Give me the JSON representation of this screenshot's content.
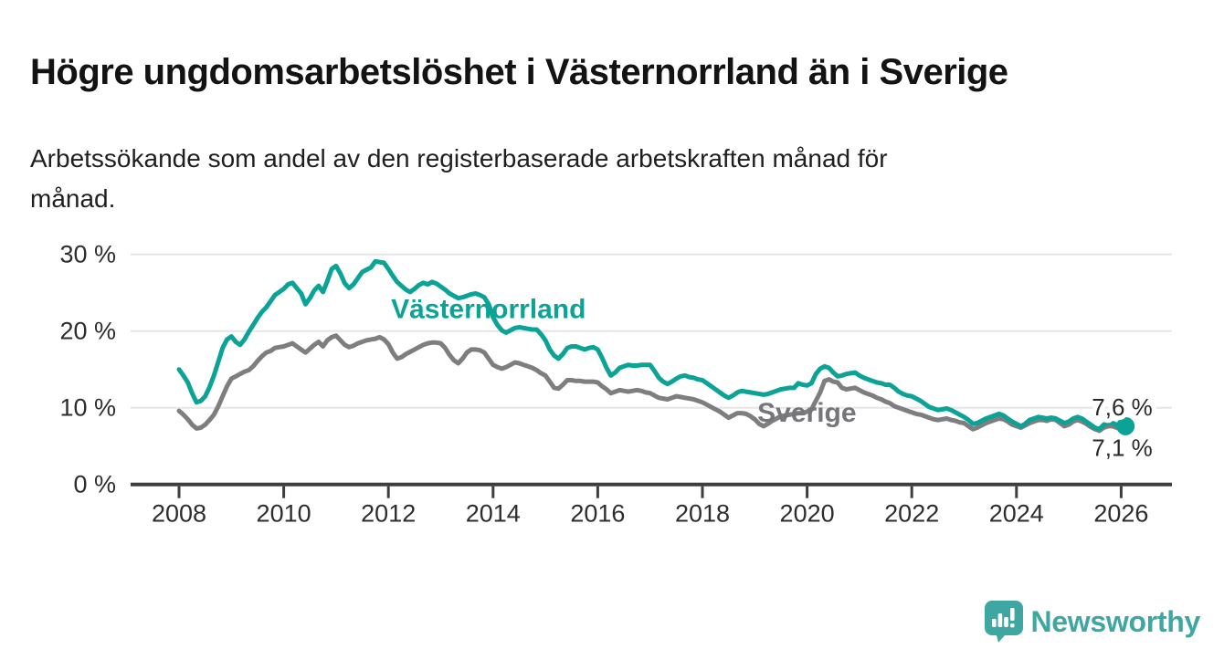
{
  "header": {
    "title": "Högre ungdomsarbetslöshet i Västernorrland än i Sverige",
    "subtitle_line1": "Arbetssökande som andel av den registerbaserade arbetskraften månad för",
    "subtitle_line2": "månad."
  },
  "footer": {
    "brand": "Newsworthy",
    "logo_icon": "bar-chart-speech-bubble-icon",
    "brand_color": "#3fa7a1"
  },
  "chart_data": {
    "type": "line",
    "x_unit": "month",
    "x_start_year": 2008,
    "x_end": "2026-02",
    "ylim": [
      0,
      33
    ],
    "grid": "horizontal",
    "y_ticks": [
      {
        "value": 0,
        "label": "0 %"
      },
      {
        "value": 10,
        "label": "10 %"
      },
      {
        "value": 20,
        "label": "20 %"
      },
      {
        "value": 30,
        "label": "30 %"
      }
    ],
    "x_ticks": [
      {
        "value": 2008,
        "label": "2008"
      },
      {
        "value": 2010,
        "label": "2010"
      },
      {
        "value": 2012,
        "label": "2012"
      },
      {
        "value": 2014,
        "label": "2014"
      },
      {
        "value": 2016,
        "label": "2016"
      },
      {
        "value": 2018,
        "label": "2018"
      },
      {
        "value": 2020,
        "label": "2020"
      },
      {
        "value": 2022,
        "label": "2022"
      },
      {
        "value": 2024,
        "label": "2024"
      },
      {
        "value": 2026,
        "label": "2026"
      }
    ],
    "colors": {
      "vasternorrland": "#0aa396",
      "sverige": "#7e7e81",
      "grid": "#e6e6e6",
      "axis": "#3e3e3e",
      "tick_label": "#2d2d2d",
      "end_label": "#2a2a2a"
    },
    "series": [
      {
        "name": "Västernorrland",
        "color": "#0aa396",
        "end_dot": true,
        "end_value_label": "7,6 %",
        "values": [
          15.0,
          14.2,
          13.3,
          11.9,
          10.7,
          10.9,
          11.5,
          12.7,
          14.2,
          16.0,
          17.8,
          18.9,
          19.3,
          18.6,
          18.2,
          18.9,
          19.9,
          20.8,
          21.7,
          22.5,
          23.1,
          23.9,
          24.7,
          25.1,
          25.5,
          26.1,
          26.3,
          25.6,
          24.9,
          23.5,
          24.3,
          25.3,
          25.9,
          25.1,
          26.5,
          28.1,
          28.5,
          27.5,
          26.2,
          25.6,
          26.1,
          26.9,
          27.7,
          28.0,
          28.3,
          29.1,
          29.0,
          28.9,
          28.1,
          27.2,
          26.4,
          25.9,
          25.4,
          25.1,
          25.5,
          26.0,
          26.3,
          26.1,
          26.4,
          26.2,
          25.8,
          25.4,
          24.9,
          24.6,
          24.3,
          24.4,
          24.6,
          24.8,
          24.9,
          24.7,
          24.4,
          23.5,
          21.8,
          20.8,
          20.1,
          19.8,
          20.1,
          20.4,
          20.5,
          20.4,
          20.3,
          20.2,
          20.2,
          19.6,
          18.8,
          17.6,
          16.8,
          16.4,
          17.0,
          17.8,
          18.0,
          18.0,
          17.8,
          17.6,
          17.8,
          17.9,
          17.6,
          16.5,
          15.2,
          14.2,
          14.6,
          15.2,
          15.4,
          15.6,
          15.5,
          15.5,
          15.6,
          15.6,
          15.6,
          14.8,
          13.9,
          13.4,
          13.1,
          13.4,
          13.8,
          14.1,
          14.2,
          14.0,
          13.9,
          13.7,
          13.6,
          13.2,
          12.8,
          12.4,
          12.0,
          11.6,
          11.3,
          11.6,
          12.0,
          12.2,
          12.1,
          12.0,
          11.9,
          11.8,
          11.7,
          11.8,
          12.0,
          12.2,
          12.4,
          12.5,
          12.6,
          12.6,
          13.2,
          13.0,
          12.9,
          13.2,
          14.4,
          15.1,
          15.4,
          15.2,
          14.6,
          14.1,
          14.2,
          14.4,
          14.5,
          14.6,
          14.2,
          13.9,
          13.7,
          13.5,
          13.3,
          13.2,
          13.0,
          13.0,
          12.6,
          12.1,
          11.8,
          11.6,
          11.5,
          11.2,
          10.9,
          10.5,
          10.1,
          9.9,
          9.7,
          9.8,
          9.9,
          9.7,
          9.4,
          9.1,
          8.8,
          8.4,
          7.9,
          8.0,
          8.3,
          8.6,
          8.8,
          9.0,
          9.2,
          9.0,
          8.6,
          8.2,
          7.9,
          7.6,
          7.9,
          8.4,
          8.6,
          8.8,
          8.7,
          8.6,
          8.7,
          8.6,
          8.3,
          8.0,
          8.2,
          8.6,
          8.8,
          8.6,
          8.2,
          7.8,
          7.4,
          7.2,
          7.8,
          8.0,
          8.0,
          7.8,
          7.7,
          7.6
        ]
      },
      {
        "name": "Sverige",
        "color": "#7e7e81",
        "end_dot": false,
        "end_value_label": "7,1 %",
        "values": [
          9.6,
          9.1,
          8.5,
          7.8,
          7.3,
          7.4,
          7.8,
          8.4,
          9.1,
          10.2,
          11.5,
          12.8,
          13.8,
          14.1,
          14.4,
          14.7,
          14.9,
          15.4,
          16.1,
          16.7,
          17.2,
          17.4,
          17.8,
          17.9,
          18.0,
          18.2,
          18.4,
          18.0,
          17.6,
          17.2,
          17.7,
          18.2,
          18.6,
          18.0,
          18.8,
          19.2,
          19.4,
          18.8,
          18.2,
          17.9,
          18.1,
          18.4,
          18.6,
          18.8,
          18.9,
          19.0,
          19.2,
          18.9,
          18.3,
          17.2,
          16.4,
          16.6,
          17.0,
          17.3,
          17.6,
          17.9,
          18.2,
          18.4,
          18.5,
          18.5,
          18.4,
          17.8,
          16.9,
          16.2,
          15.8,
          16.4,
          17.2,
          17.6,
          17.6,
          17.5,
          17.2,
          16.4,
          15.6,
          15.3,
          15.1,
          15.3,
          15.6,
          15.9,
          15.8,
          15.6,
          15.4,
          15.2,
          14.9,
          14.5,
          14.2,
          13.4,
          12.6,
          12.5,
          13.0,
          13.6,
          13.6,
          13.5,
          13.5,
          13.4,
          13.4,
          13.4,
          13.3,
          12.8,
          12.4,
          11.9,
          12.1,
          12.3,
          12.2,
          12.1,
          12.2,
          12.3,
          12.2,
          12.0,
          11.9,
          11.6,
          11.3,
          11.2,
          11.1,
          11.3,
          11.5,
          11.4,
          11.3,
          11.2,
          11.1,
          10.9,
          10.7,
          10.4,
          10.1,
          9.8,
          9.5,
          9.1,
          8.7,
          9.0,
          9.3,
          9.3,
          9.2,
          8.9,
          8.5,
          7.9,
          7.6,
          7.9,
          8.3,
          8.6,
          8.9,
          9.0,
          9.1,
          9.2,
          9.3,
          9.3,
          9.5,
          9.8,
          10.9,
          12.0,
          13.5,
          13.7,
          13.4,
          13.3,
          12.6,
          12.4,
          12.5,
          12.6,
          12.3,
          12.0,
          11.8,
          11.6,
          11.3,
          11.1,
          10.8,
          10.6,
          10.2,
          10.0,
          9.8,
          9.6,
          9.4,
          9.2,
          9.1,
          8.9,
          8.7,
          8.5,
          8.4,
          8.5,
          8.6,
          8.4,
          8.3,
          8.1,
          8.0,
          7.6,
          7.2,
          7.4,
          7.7,
          8.0,
          8.2,
          8.4,
          8.6,
          8.5,
          8.2,
          7.8,
          7.6,
          7.4,
          7.7,
          8.0,
          8.2,
          8.4,
          8.4,
          8.3,
          8.5,
          8.4,
          8.0,
          7.6,
          7.8,
          8.2,
          8.4,
          8.2,
          7.9,
          7.5,
          7.2,
          7.0,
          7.4,
          7.6,
          7.6,
          7.4,
          7.2,
          7.1
        ]
      }
    ],
    "annotations": [
      {
        "id": "vasternorrland-label",
        "text": "Västernorrland",
        "t": 2012.05,
        "v": 21.7,
        "color": "#0aa396",
        "size": 30,
        "weight": 700,
        "halo": false
      },
      {
        "id": "sverige-label",
        "text": "Sverige",
        "t": 2019.05,
        "v": 8.2,
        "color": "#76767a",
        "size": 30,
        "weight": 700,
        "halo": false
      },
      {
        "id": "end-value-top",
        "text": "7,6 %",
        "t": 2025.44,
        "v": 9.0,
        "color": "#2a2a2a",
        "size": 26,
        "weight": 400,
        "halo": true
      },
      {
        "id": "end-value-bottom",
        "text": "7,1 %",
        "t": 2025.44,
        "v": 3.7,
        "color": "#2a2a2a",
        "size": 26,
        "weight": 400,
        "halo": true
      }
    ]
  }
}
